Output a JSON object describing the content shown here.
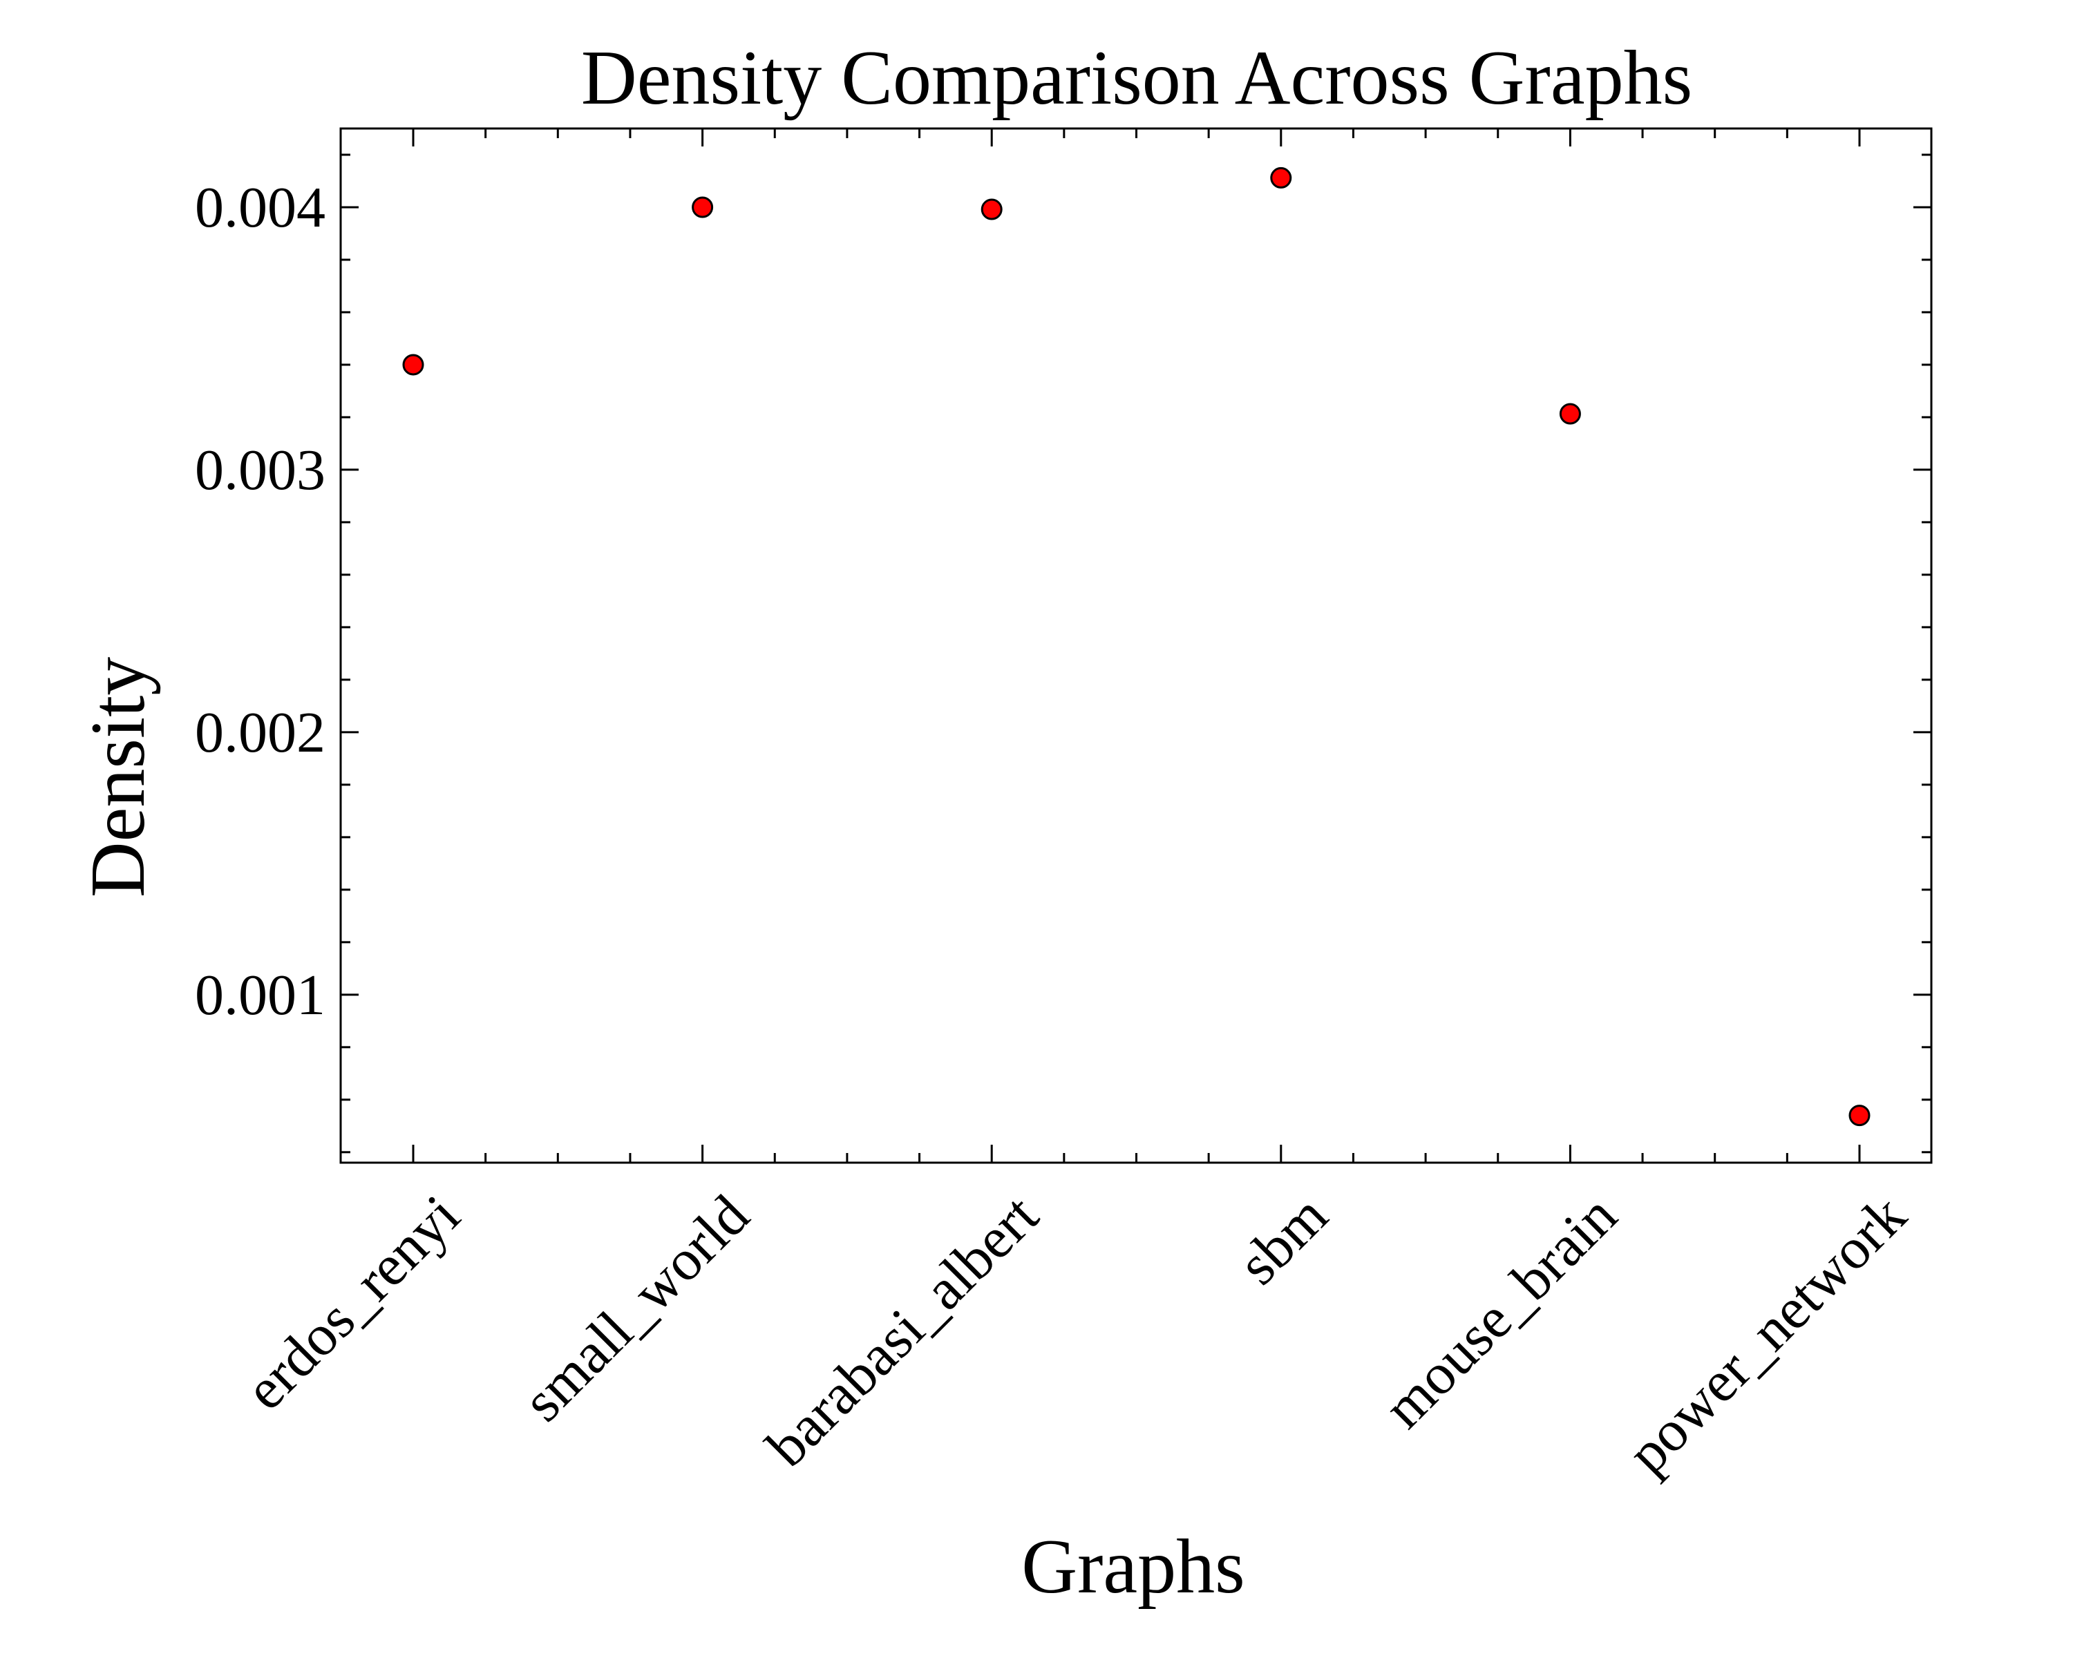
{
  "chart_data": {
    "type": "scatter",
    "title": "Density Comparison Across Graphs",
    "xlabel": "Graphs",
    "ylabel": "Density",
    "categories": [
      "erdos_renyi",
      "small_world",
      "barabasi_albert",
      "sbm",
      "mouse_brain",
      "power_network"
    ],
    "series": [
      {
        "values": [
          0.0034,
          0.004,
          0.003992,
          0.004112,
          0.003213,
          0.00054
        ]
      }
    ],
    "ylim": [
      0.00036,
      0.0043
    ],
    "y_ticks": [
      0.001,
      0.002,
      0.003,
      0.004
    ],
    "y_tick_labels": [
      "0.001",
      "0.002",
      "0.003",
      "0.004"
    ],
    "y_minor_step": 0.0002,
    "x_minor_per_major": 4,
    "x_tick_rotation_deg": -45,
    "ticks_direction": "in",
    "ticks_on_all_sides": true,
    "grid": false,
    "legend": "none",
    "marker_color": "#ff0000",
    "marker_edge_color": "#000000"
  }
}
